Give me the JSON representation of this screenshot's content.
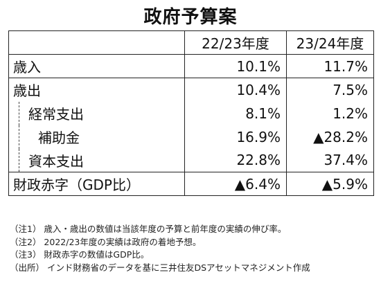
{
  "title": "政府予算案",
  "table": {
    "headers": [
      "",
      "22/23年度",
      "23/24年度"
    ],
    "rows": [
      {
        "label": "歳入",
        "v1": "10.1%",
        "v2": "11.7%"
      },
      {
        "label": "歳出",
        "v1": "10.4%",
        "v2": "7.5%"
      },
      {
        "label": "経常支出",
        "v1": "8.1%",
        "v2": "1.2%"
      },
      {
        "label": "補助金",
        "v1": "16.9%",
        "v2": "▲28.2%"
      },
      {
        "label": "資本支出",
        "v1": "22.8%",
        "v2": "37.4%"
      },
      {
        "label": "財政赤字（GDP比）",
        "v1": "▲6.4%",
        "v2": "▲5.9%"
      }
    ]
  },
  "notes": [
    "（注1） 歳入・歳出の数値は当該年度の予算と前年度の実績の伸び率。",
    "（注2） 2022/23年度の実績は政府の着地予想。",
    "（注3） 財政赤字の数値はGDP比。",
    "（出所） インド財務省のデータを基に三井住友DSアセットマネジメント作成"
  ]
}
